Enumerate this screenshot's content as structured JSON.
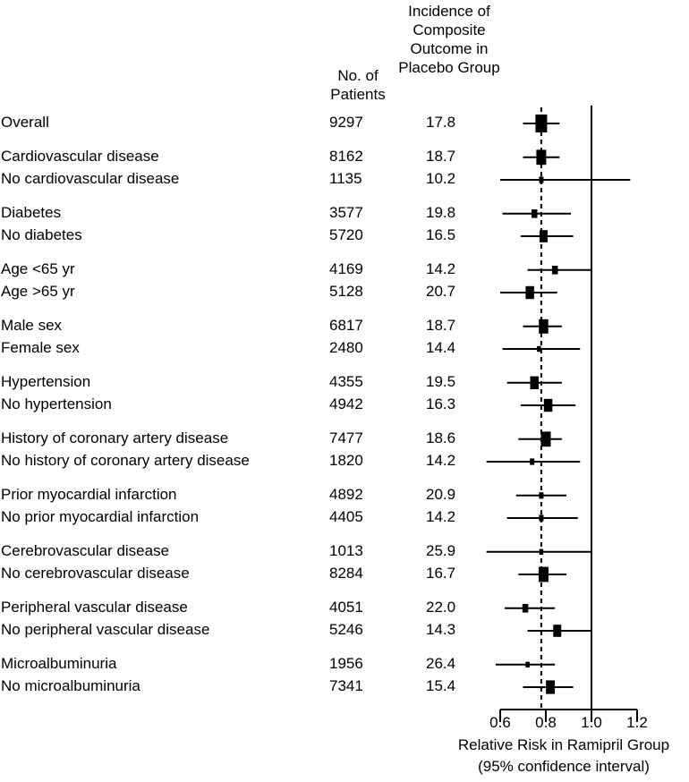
{
  "chart_data": {
    "type": "forest",
    "title": "",
    "columns": {
      "label_header": "",
      "n_header": "No. of Patients",
      "incidence_header": "Incidence of Composite Outcome in Placebo Group"
    },
    "xlabel": "Relative Risk in Ramipril Group",
    "xlabel_sub": "(95% confidence interval)",
    "xticks": [
      "0.6",
      "0.8",
      "1.0",
      "1.2"
    ],
    "xtick_values": [
      0.6,
      0.8,
      1.0,
      1.2
    ],
    "xlim": [
      0.6,
      1.2
    ],
    "reference_line": 1.0,
    "overall_line": 0.78,
    "groups": [
      [
        {
          "label": "Overall",
          "n": "9297",
          "incidence": "17.8",
          "rr": 0.78,
          "lo": 0.7,
          "hi": 0.86,
          "weight": 1.0
        }
      ],
      [
        {
          "label": "Cardiovascular disease",
          "n": "8162",
          "incidence": "18.7",
          "rr": 0.78,
          "lo": 0.7,
          "hi": 0.86,
          "weight": 0.8
        },
        {
          "label": "No cardiovascular disease",
          "n": "1135",
          "incidence": "10.2",
          "rr": 0.78,
          "lo": 0.6,
          "hi": 1.17,
          "weight": 0.2
        }
      ],
      [
        {
          "label": "Diabetes",
          "n": "3577",
          "incidence": "19.8",
          "rr": 0.75,
          "lo": 0.61,
          "hi": 0.91,
          "weight": 0.35
        },
        {
          "label": "No diabetes",
          "n": "5720",
          "incidence": "16.5",
          "rr": 0.79,
          "lo": 0.69,
          "hi": 0.92,
          "weight": 0.6
        }
      ],
      [
        {
          "label": "Age <65 yr",
          "n": "4169",
          "incidence": "14.2",
          "rr": 0.84,
          "lo": 0.72,
          "hi": 1.0,
          "weight": 0.35
        },
        {
          "label": "Age >65 yr",
          "n": "5128",
          "incidence": "20.7",
          "rr": 0.73,
          "lo": 0.6,
          "hi": 0.85,
          "weight": 0.65
        }
      ],
      [
        {
          "label": "Male sex",
          "n": "6817",
          "incidence": "18.7",
          "rr": 0.79,
          "lo": 0.7,
          "hi": 0.87,
          "weight": 0.75
        },
        {
          "label": "Female sex",
          "n": "2480",
          "incidence": "14.4",
          "rr": 0.77,
          "lo": 0.61,
          "hi": 0.95,
          "weight": 0.15
        }
      ],
      [
        {
          "label": "Hypertension",
          "n": "4355",
          "incidence": "19.5",
          "rr": 0.75,
          "lo": 0.63,
          "hi": 0.87,
          "weight": 0.65
        },
        {
          "label": "No hypertension",
          "n": "4942",
          "incidence": "16.3",
          "rr": 0.81,
          "lo": 0.69,
          "hi": 0.93,
          "weight": 0.65
        }
      ],
      [
        {
          "label": "History of coronary artery disease",
          "n": "7477",
          "incidence": "18.6",
          "rr": 0.8,
          "lo": 0.68,
          "hi": 0.87,
          "weight": 0.8
        },
        {
          "label": "No history of coronary artery disease",
          "n": "1820",
          "incidence": "14.2",
          "rr": 0.74,
          "lo": 0.54,
          "hi": 0.95,
          "weight": 0.2
        }
      ],
      [
        {
          "label": "Prior myocardial infarction",
          "n": "4892",
          "incidence": "20.9",
          "rr": 0.78,
          "lo": 0.67,
          "hi": 0.89,
          "weight": 0.2
        },
        {
          "label": "No prior myocardial infarction",
          "n": "4405",
          "incidence": "14.2",
          "rr": 0.78,
          "lo": 0.63,
          "hi": 0.94,
          "weight": 0.2
        }
      ],
      [
        {
          "label": "Cerebrovascular disease",
          "n": "1013",
          "incidence": "25.9",
          "rr": 0.78,
          "lo": 0.54,
          "hi": 1.0,
          "weight": 0.15
        },
        {
          "label": "No cerebrovascular disease",
          "n": "8284",
          "incidence": "16.7",
          "rr": 0.79,
          "lo": 0.68,
          "hi": 0.89,
          "weight": 0.8
        }
      ],
      [
        {
          "label": "Peripheral vascular disease",
          "n": "4051",
          "incidence": "22.0",
          "rr": 0.71,
          "lo": 0.62,
          "hi": 0.84,
          "weight": 0.35
        },
        {
          "label": "No peripheral vascular disease",
          "n": "5246",
          "incidence": "14.3",
          "rr": 0.85,
          "lo": 0.72,
          "hi": 1.0,
          "weight": 0.6
        }
      ],
      [
        {
          "label": "Microalbuminuria",
          "n": "1956",
          "incidence": "26.4",
          "rr": 0.72,
          "lo": 0.58,
          "hi": 0.84,
          "weight": 0.15
        },
        {
          "label": "No microalbuminuria",
          "n": "7341",
          "incidence": "15.4",
          "rr": 0.82,
          "lo": 0.7,
          "hi": 0.92,
          "weight": 0.7
        }
      ]
    ]
  }
}
